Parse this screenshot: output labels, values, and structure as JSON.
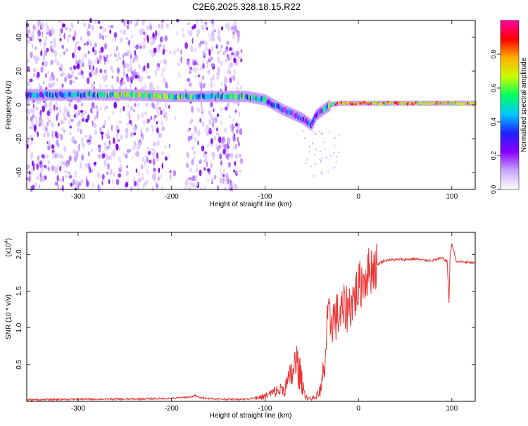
{
  "title": "C2E6.2025.328.18.15.R22",
  "chart_data": [
    {
      "type": "heatmap",
      "title": "C2E6.2025.328.18.15.R22",
      "xlabel": "Height of straight line (km)",
      "ylabel": "Frequency (Hz)",
      "xlim": [
        -355,
        125
      ],
      "ylim": [
        -50,
        50
      ],
      "x_ticks": [
        -300,
        -200,
        -100,
        0,
        100
      ],
      "x_tick_labels": [
        "-300",
        "-200",
        "-100",
        "0",
        "100"
      ],
      "y_ticks": [
        -40,
        -20,
        0,
        20,
        40
      ],
      "y_tick_labels": [
        "-40",
        "-20",
        "0",
        "20",
        "40"
      ],
      "colorbar": {
        "label": "Normalized spectral amplitude",
        "range": [
          0,
          1
        ],
        "ticks": [
          0.0,
          0.2,
          0.4,
          0.6,
          0.8
        ],
        "tick_labels": [
          "0.0",
          "0.2",
          "0.4",
          "0.6",
          "0.8"
        ],
        "colors": [
          "#ffffff",
          "#c9a6ff",
          "#8a00ff",
          "#1f1fff",
          "#00c8ff",
          "#00ff60",
          "#c8ff00",
          "#ffb000",
          "#ff0000",
          "#ff00a0"
        ]
      },
      "ridge": {
        "x": [
          -355,
          -300,
          -250,
          -200,
          -150,
          -120,
          -100,
          -80,
          -60,
          -50,
          -45,
          -40,
          -30,
          -20,
          -10,
          0,
          20,
          50,
          80,
          100,
          125
        ],
        "freq_hz": [
          6,
          6,
          6,
          5,
          5,
          5,
          3,
          -3,
          -8,
          -12,
          -6,
          -4,
          0,
          1,
          1,
          1,
          1,
          1,
          1,
          1,
          1
        ],
        "peak_amplitude": [
          0.35,
          0.4,
          0.6,
          0.55,
          0.45,
          0.5,
          0.4,
          0.35,
          0.3,
          0.3,
          0.3,
          0.35,
          0.6,
          0.8,
          0.85,
          0.85,
          0.7,
          0.75,
          0.7,
          0.7,
          0.7
        ]
      },
      "noise_region_x": [
        -355,
        -125
      ]
    },
    {
      "type": "line",
      "xlabel": "Height of straight line (km)",
      "ylabel": "SNR (10 * v/v)",
      "y_scale_label": "(x10",
      "y_scale_exp": "4",
      "xlim": [
        -355,
        125
      ],
      "ylim": [
        0,
        2.3
      ],
      "x_ticks": [
        -300,
        -200,
        -100,
        0,
        100
      ],
      "x_tick_labels": [
        "-300",
        "-200",
        "-100",
        "0",
        "100"
      ],
      "y_ticks": [
        0.5,
        1.0,
        1.5,
        2.0
      ],
      "y_tick_labels": [
        "0.5",
        "1.0",
        "1.5",
        "2.0"
      ],
      "color": "#ee3333",
      "x": [
        -355,
        -300,
        -250,
        -200,
        -180,
        -175,
        -170,
        -150,
        -120,
        -110,
        -100,
        -90,
        -80,
        -75,
        -70,
        -66,
        -62,
        -58,
        -55,
        -50,
        -45,
        -40,
        -36,
        -33,
        -30,
        -25,
        -20,
        -15,
        -10,
        -5,
        0,
        5,
        10,
        15,
        20,
        25,
        30,
        40,
        50,
        60,
        70,
        80,
        90,
        95,
        97,
        98,
        100,
        105,
        110,
        125
      ],
      "y": [
        0.02,
        0.03,
        0.03,
        0.04,
        0.06,
        0.08,
        0.05,
        0.03,
        0.03,
        0.05,
        0.08,
        0.15,
        0.2,
        0.3,
        0.5,
        0.6,
        0.4,
        0.15,
        0.06,
        0.04,
        0.08,
        0.2,
        0.6,
        1.05,
        1.1,
        1.15,
        1.15,
        1.25,
        1.3,
        1.4,
        1.55,
        1.65,
        1.75,
        1.82,
        1.86,
        1.9,
        1.92,
        1.93,
        1.93,
        1.94,
        1.92,
        1.92,
        1.95,
        1.9,
        1.35,
        1.95,
        2.15,
        1.9,
        1.9,
        1.88
      ]
    }
  ]
}
